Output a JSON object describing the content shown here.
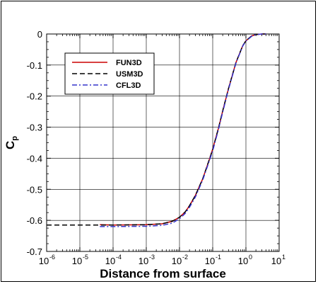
{
  "chart_data": {
    "type": "line",
    "xscale": "log",
    "xlim": [
      1e-06,
      10
    ],
    "ylim": [
      -0.7,
      0
    ],
    "grid": true,
    "legend_position": "top-left",
    "xlabel": "Distance from surface",
    "ylabel": "C",
    "ylabel_subscript": "p",
    "x_ticks": [
      {
        "base": "10",
        "exp": "-6"
      },
      {
        "base": "10",
        "exp": "-5"
      },
      {
        "base": "10",
        "exp": "-4"
      },
      {
        "base": "10",
        "exp": "-3"
      },
      {
        "base": "10",
        "exp": "-2"
      },
      {
        "base": "10",
        "exp": "-1"
      },
      {
        "base": "10",
        "exp": "0"
      },
      {
        "base": "10",
        "exp": "1"
      }
    ],
    "y_ticks": [
      "0",
      "-0.1",
      "-0.2",
      "-0.3",
      "-0.4",
      "-0.5",
      "-0.6",
      "-0.7"
    ],
    "series": [
      {
        "name": "FUN3D",
        "color": "#cc0000",
        "dash": "solid",
        "x": [
          4e-05,
          0.0001,
          0.001,
          0.003,
          0.006,
          0.01,
          0.015,
          0.02,
          0.03,
          0.05,
          0.08,
          0.1,
          0.15,
          0.2,
          0.3,
          0.5,
          0.8,
          1.0,
          1.5,
          2.0,
          3.0,
          4.0
        ],
        "y": [
          -0.614,
          -0.615,
          -0.614,
          -0.611,
          -0.603,
          -0.59,
          -0.572,
          -0.553,
          -0.52,
          -0.466,
          -0.403,
          -0.37,
          -0.302,
          -0.248,
          -0.175,
          -0.092,
          -0.038,
          -0.022,
          -0.006,
          -0.002,
          0,
          0
        ]
      },
      {
        "name": "USM3D",
        "color": "#000000",
        "dash": "dashed",
        "x": [
          1e-06,
          1e-05,
          0.0001,
          0.001,
          0.003,
          0.006,
          0.01,
          0.015,
          0.02,
          0.03,
          0.05,
          0.08,
          0.1,
          0.15,
          0.2,
          0.3,
          0.5,
          0.8,
          1.0,
          1.5,
          2.0,
          3.0,
          4.0
        ],
        "y": [
          -0.615,
          -0.615,
          -0.615,
          -0.614,
          -0.611,
          -0.603,
          -0.59,
          -0.572,
          -0.553,
          -0.52,
          -0.466,
          -0.403,
          -0.372,
          -0.302,
          -0.248,
          -0.175,
          -0.092,
          -0.038,
          -0.022,
          -0.006,
          -0.002,
          0,
          0
        ]
      },
      {
        "name": "CFL3D",
        "color": "#3333cc",
        "dash": "dashdot",
        "x": [
          4e-05,
          0.0001,
          0.001,
          0.003,
          0.006,
          0.01,
          0.015,
          0.02,
          0.03,
          0.05,
          0.08,
          0.1,
          0.15,
          0.2,
          0.3,
          0.5,
          0.8,
          1.0,
          1.5,
          2.0,
          3.0,
          4.0
        ],
        "y": [
          -0.62,
          -0.62,
          -0.619,
          -0.616,
          -0.609,
          -0.595,
          -0.577,
          -0.558,
          -0.525,
          -0.47,
          -0.407,
          -0.376,
          -0.306,
          -0.252,
          -0.178,
          -0.094,
          -0.039,
          -0.023,
          -0.007,
          -0.002,
          0,
          0
        ]
      }
    ]
  }
}
